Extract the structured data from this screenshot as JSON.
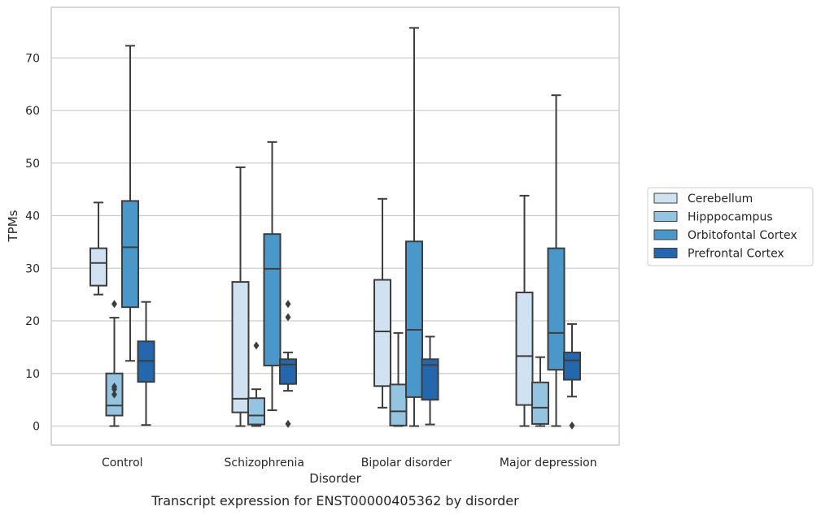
{
  "chart_data": {
    "type": "box",
    "caption": "Transcript expression for ENST00000405362 by disorder",
    "xlabel": "Disorder",
    "ylabel": "TPMs",
    "ylim": [
      -3.7,
      79.5
    ],
    "yticks": [
      0,
      10,
      20,
      30,
      40,
      50,
      60,
      70
    ],
    "grid": "horizontal",
    "legend_position": "right",
    "categories": [
      "Control",
      "Schizophrenia",
      "Bipolar disorder",
      "Major depression"
    ],
    "series": [
      {
        "name": "Cerebellum",
        "color": "#d0e1f2",
        "boxes": [
          {
            "min": 25.0,
            "q1": 26.7,
            "median": 31.0,
            "q3": 33.8,
            "max": 42.5,
            "outliers": []
          },
          {
            "min": 0.0,
            "q1": 2.6,
            "median": 5.2,
            "q3": 27.4,
            "max": 49.2,
            "outliers": []
          },
          {
            "min": 3.5,
            "q1": 7.6,
            "median": 18.0,
            "q3": 27.8,
            "max": 43.2,
            "outliers": []
          },
          {
            "min": 0.0,
            "q1": 4.0,
            "median": 13.3,
            "q3": 25.4,
            "max": 43.8,
            "outliers": []
          }
        ]
      },
      {
        "name": "Hipppocampus",
        "color": "#94c4df",
        "boxes": [
          {
            "min": 0.0,
            "q1": 2.0,
            "median": 3.9,
            "q3": 10.0,
            "max": 20.6,
            "outliers": [
              6.0,
              7.0,
              7.5,
              23.2
            ]
          },
          {
            "min": 0.0,
            "q1": 0.3,
            "median": 2.0,
            "q3": 5.3,
            "max": 7.0,
            "outliers": [
              15.3
            ]
          },
          {
            "min": 0.0,
            "q1": 0.1,
            "median": 2.8,
            "q3": 7.9,
            "max": 17.7,
            "outliers": []
          },
          {
            "min": 0.0,
            "q1": 0.4,
            "median": 3.5,
            "q3": 8.3,
            "max": 13.1,
            "outliers": []
          }
        ]
      },
      {
        "name": "Orbitofontal Cortex",
        "color": "#4a98c9",
        "boxes": [
          {
            "min": 12.4,
            "q1": 22.6,
            "median": 34.0,
            "q3": 42.8,
            "max": 72.3,
            "outliers": []
          },
          {
            "min": 3.0,
            "q1": 11.5,
            "median": 29.9,
            "q3": 36.5,
            "max": 54.0,
            "outliers": []
          },
          {
            "min": 0.0,
            "q1": 5.5,
            "median": 18.3,
            "q3": 35.1,
            "max": 75.7,
            "outliers": []
          },
          {
            "min": 0.0,
            "q1": 10.7,
            "median": 17.7,
            "q3": 33.8,
            "max": 62.9,
            "outliers": []
          }
        ]
      },
      {
        "name": "Prefrontal Cortex",
        "color": "#2567ad",
        "boxes": [
          {
            "min": 0.2,
            "q1": 8.4,
            "median": 12.4,
            "q3": 16.1,
            "max": 23.6,
            "outliers": []
          },
          {
            "min": 6.7,
            "q1": 8.0,
            "median": 11.7,
            "q3": 12.7,
            "max": 14.0,
            "outliers": [
              0.4,
              20.7,
              23.2
            ]
          },
          {
            "min": 0.3,
            "q1": 5.0,
            "median": 11.6,
            "q3": 12.7,
            "max": 17.0,
            "outliers": []
          },
          {
            "min": 5.6,
            "q1": 8.8,
            "median": 12.5,
            "q3": 14.0,
            "max": 19.4,
            "outliers": [
              0.1
            ]
          }
        ]
      }
    ]
  }
}
